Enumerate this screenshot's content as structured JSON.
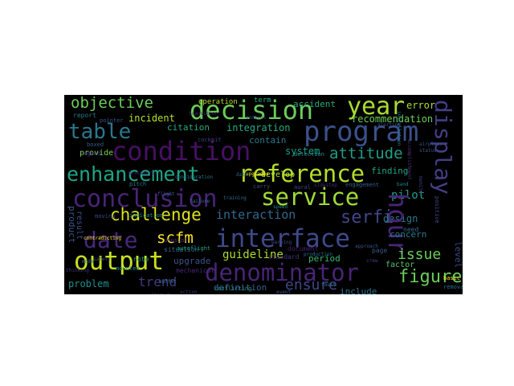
{
  "words": [
    {
      "text": "objective",
      "color": "#6ccd5a"
    },
    {
      "text": "decision",
      "color": "#6ccd5a"
    },
    {
      "text": "year",
      "color": "#a8db34"
    },
    {
      "text": "error",
      "color": "#a8db34"
    },
    {
      "text": "program",
      "color": "#3b518b"
    },
    {
      "text": "table",
      "color": "#2a788e"
    },
    {
      "text": "condition",
      "color": "#471063"
    },
    {
      "text": "recommendation",
      "color": "#6ccd5a"
    },
    {
      "text": "incident",
      "color": "#b5de2b"
    },
    {
      "text": "citation",
      "color": "#25ab82"
    },
    {
      "text": "integration",
      "color": "#25ab82"
    },
    {
      "text": "accident",
      "color": "#25ab82"
    },
    {
      "text": "operation",
      "color": "#b5de2b"
    },
    {
      "text": "term",
      "color": "#25ab82"
    },
    {
      "text": "report",
      "color": "#2a788e"
    },
    {
      "text": "contain",
      "color": "#2a788e"
    },
    {
      "text": "attitude",
      "color": "#1f9e89"
    },
    {
      "text": "system",
      "color": "#1f9e89"
    },
    {
      "text": "enhancement",
      "color": "#20a486"
    },
    {
      "text": "reference",
      "color": "#b5de2b"
    },
    {
      "text": "finding",
      "color": "#20a486"
    },
    {
      "text": "display",
      "color": "#433e85"
    },
    {
      "text": "conclusion",
      "color": "#482475"
    },
    {
      "text": "service",
      "color": "#a0da39"
    },
    {
      "text": "pilot",
      "color": "#1f9e89"
    },
    {
      "text": "challenge",
      "color": "#dde318"
    },
    {
      "text": "interaction",
      "color": "#31688e"
    },
    {
      "text": "serfi",
      "color": "#414487"
    },
    {
      "text": "design",
      "color": "#2a788e"
    },
    {
      "text": "date",
      "color": "#482878"
    },
    {
      "text": "scfm",
      "color": "#fde725"
    },
    {
      "text": "interface",
      "color": "#3e4989"
    },
    {
      "text": "hour",
      "color": "#482475"
    },
    {
      "text": "concern",
      "color": "#2a788e"
    },
    {
      "text": "output",
      "color": "#c8e020"
    },
    {
      "text": "guideline",
      "color": "#addc30"
    },
    {
      "text": "denominator",
      "color": "#482475"
    },
    {
      "text": "issue",
      "color": "#6ccd5a"
    },
    {
      "text": "period",
      "color": "#35b779"
    },
    {
      "text": "upgrade",
      "color": "#3b528b"
    },
    {
      "text": "figure",
      "color": "#6ccd5a"
    },
    {
      "text": "trend",
      "color": "#443983"
    },
    {
      "text": "ensure",
      "color": "#404688"
    },
    {
      "text": "problem",
      "color": "#21918c"
    },
    {
      "text": "definition",
      "color": "#355f8d"
    },
    {
      "text": "include",
      "color": "#2c728e"
    },
    {
      "text": "product",
      "color": "#39568c"
    },
    {
      "text": "result",
      "color": "#3b528b"
    },
    {
      "text": "provide",
      "color": "#7ad151"
    },
    {
      "text": "develop",
      "color": "#addc30"
    },
    {
      "text": "factor",
      "color": "#52c569"
    },
    {
      "text": "level",
      "color": "#3e4989"
    },
    {
      "text": "page",
      "color": "#38588c"
    },
    {
      "text": "standard",
      "color": "#46327e"
    },
    {
      "text": "document",
      "color": "#481f70"
    },
    {
      "text": "mechanical",
      "color": "#482878"
    },
    {
      "text": "note",
      "color": "#1e9b8a"
    },
    {
      "text": "situation",
      "color": "#2e6e8e"
    },
    {
      "text": "need",
      "color": "#2f6c8e"
    },
    {
      "text": "conflicting",
      "color": "#20928c"
    },
    {
      "text": "basic",
      "color": "#fde725"
    },
    {
      "text": "removal",
      "color": "#2c738e"
    },
    {
      "text": "engagement",
      "color": "#365d8d"
    },
    {
      "text": "carry",
      "color": "#3d4e8a"
    },
    {
      "text": "pitch",
      "color": "#2a788e"
    },
    {
      "text": "indication",
      "color": "#21918c"
    },
    {
      "text": "boxed",
      "color": "#35608d"
    },
    {
      "text": "moving",
      "color": "#414487"
    },
    {
      "text": "legend",
      "color": "#46337f"
    },
    {
      "text": "pointer",
      "color": "#3a548c"
    },
    {
      "text": "cockpit",
      "color": "#433e85"
    },
    {
      "text": "autoflight",
      "color": "#1fa088"
    },
    {
      "text": "mounted",
      "color": "#238a8d"
    },
    {
      "text": "unusual",
      "color": "#472f7d"
    },
    {
      "text": "aural",
      "color": "#3e4a89"
    },
    {
      "text": "detection",
      "color": "#21918c"
    },
    {
      "text": "thinking",
      "color": "#46337f"
    },
    {
      "text": "airplane",
      "color": "#3a538b"
    },
    {
      "text": "status",
      "color": "#39558c"
    },
    {
      "text": "accomplishment",
      "color": "#46337f"
    },
    {
      "text": "upgrades",
      "color": "#fde725"
    },
    {
      "text": "contradicting",
      "color": "#fde725"
    },
    {
      "text": "positive",
      "color": "#3e4a89"
    },
    {
      "text": "production",
      "color": "#2c728e"
    },
    {
      "text": "installation",
      "color": "#2a788e"
    },
    {
      "text": "sidestep",
      "color": "#472a7a"
    },
    {
      "text": "alerting",
      "color": "#3b528b"
    },
    {
      "text": "band",
      "color": "#26828e"
    },
    {
      "text": "approach",
      "color": "#3a548c"
    },
    {
      "text": "procedure",
      "color": "#46327e"
    },
    {
      "text": "buffet",
      "color": "#2a788e"
    },
    {
      "text": "fault",
      "color": "#2e6f8e"
    },
    {
      "text": "consideration",
      "color": "#2a788e"
    },
    {
      "text": "monitor",
      "color": "#433d84"
    },
    {
      "text": "transition",
      "color": "#482677"
    },
    {
      "text": "control",
      "color": "#3f4788"
    },
    {
      "text": "warning",
      "color": "#404588"
    },
    {
      "text": "mode",
      "color": "#2e6f8e"
    },
    {
      "text": "flight",
      "color": "#3b528b"
    },
    {
      "text": "crew",
      "color": "#433e85"
    },
    {
      "text": "speed",
      "color": "#26828e"
    },
    {
      "text": "altitude",
      "color": "#46327e"
    },
    {
      "text": "training",
      "color": "#2f6b8e"
    },
    {
      "text": "safety",
      "color": "#3e4989"
    },
    {
      "text": "data",
      "color": "#32658e"
    },
    {
      "text": "action",
      "color": "#472c7a"
    },
    {
      "text": "event",
      "color": "#38588c"
    },
    {
      "text": "failure",
      "color": "#2d708e"
    }
  ]
}
